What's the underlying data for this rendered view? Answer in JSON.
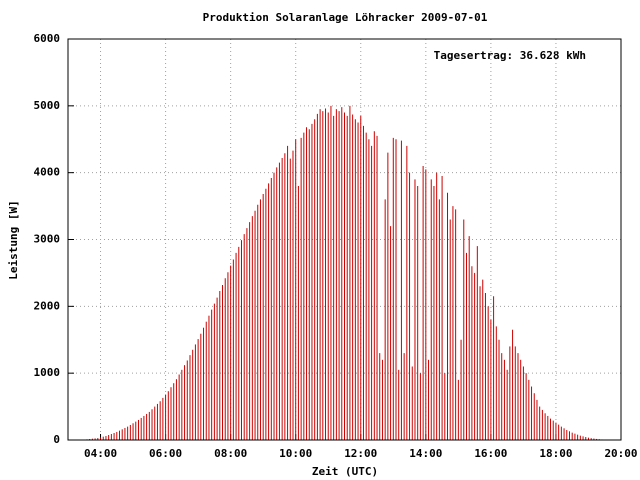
{
  "chart_data": {
    "type": "impulse",
    "title": "Produktion Solaranlage Löhracker 2009-07-01",
    "annotation": "Tagesertrag: 36.628 kWh",
    "x_label": "Zeit (UTC)",
    "y_label": "Leistung [W]",
    "color": "#cc0000",
    "grid": true,
    "xlim": [
      "03:00",
      "20:00"
    ],
    "xticks": [
      "04:00",
      "06:00",
      "08:00",
      "10:00",
      "12:00",
      "14:00",
      "16:00",
      "18:00",
      "20:00"
    ],
    "ylim": [
      0,
      6000
    ],
    "yticks": [
      0,
      1000,
      2000,
      3000,
      4000,
      5000,
      6000
    ],
    "x": [
      "03:35",
      "03:40",
      "03:45",
      "03:50",
      "03:55",
      "04:00",
      "04:05",
      "04:10",
      "04:15",
      "04:20",
      "04:25",
      "04:30",
      "04:35",
      "04:40",
      "04:45",
      "04:50",
      "04:55",
      "05:00",
      "05:05",
      "05:10",
      "05:15",
      "05:20",
      "05:25",
      "05:30",
      "05:35",
      "05:40",
      "05:45",
      "05:50",
      "05:55",
      "06:00",
      "06:05",
      "06:10",
      "06:15",
      "06:20",
      "06:25",
      "06:30",
      "06:35",
      "06:40",
      "06:45",
      "06:50",
      "06:55",
      "07:00",
      "07:05",
      "07:10",
      "07:15",
      "07:20",
      "07:25",
      "07:30",
      "07:35",
      "07:40",
      "07:45",
      "07:50",
      "07:55",
      "08:00",
      "08:05",
      "08:10",
      "08:15",
      "08:20",
      "08:25",
      "08:30",
      "08:35",
      "08:40",
      "08:45",
      "08:50",
      "08:55",
      "09:00",
      "09:05",
      "09:10",
      "09:15",
      "09:20",
      "09:25",
      "09:30",
      "09:35",
      "09:40",
      "09:45",
      "09:50",
      "09:55",
      "10:00",
      "10:05",
      "10:10",
      "10:15",
      "10:20",
      "10:25",
      "10:30",
      "10:35",
      "10:40",
      "10:45",
      "10:50",
      "10:55",
      "11:00",
      "11:05",
      "11:10",
      "11:15",
      "11:20",
      "11:25",
      "11:30",
      "11:35",
      "11:40",
      "11:45",
      "11:50",
      "11:55",
      "12:00",
      "12:05",
      "12:10",
      "12:15",
      "12:20",
      "12:25",
      "12:30",
      "12:35",
      "12:40",
      "12:45",
      "12:50",
      "12:55",
      "13:00",
      "13:05",
      "13:10",
      "13:15",
      "13:20",
      "13:25",
      "13:30",
      "13:35",
      "13:40",
      "13:45",
      "13:50",
      "13:55",
      "14:00",
      "14:05",
      "14:10",
      "14:15",
      "14:20",
      "14:25",
      "14:30",
      "14:35",
      "14:40",
      "14:45",
      "14:50",
      "14:55",
      "15:00",
      "15:05",
      "15:10",
      "15:15",
      "15:20",
      "15:25",
      "15:30",
      "15:35",
      "15:40",
      "15:45",
      "15:50",
      "15:55",
      "16:00",
      "16:05",
      "16:10",
      "16:15",
      "16:20",
      "16:25",
      "16:30",
      "16:35",
      "16:40",
      "16:45",
      "16:50",
      "16:55",
      "17:00",
      "17:05",
      "17:10",
      "17:15",
      "17:20",
      "17:25",
      "17:30",
      "17:35",
      "17:40",
      "17:45",
      "17:50",
      "17:55",
      "18:00",
      "18:05",
      "18:10",
      "18:15",
      "18:20",
      "18:25",
      "18:30",
      "18:35",
      "18:40",
      "18:45",
      "18:50",
      "18:55",
      "19:00",
      "19:05",
      "19:10",
      "19:15",
      "19:20",
      "19:25",
      "19:30",
      "19:35",
      "19:40"
    ],
    "values": [
      10,
      15,
      20,
      25,
      30,
      40,
      50,
      60,
      75,
      90,
      105,
      120,
      140,
      160,
      180,
      200,
      225,
      250,
      275,
      300,
      330,
      360,
      390,
      420,
      460,
      500,
      540,
      580,
      630,
      680,
      730,
      790,
      850,
      910,
      980,
      1050,
      1120,
      1190,
      1270,
      1350,
      1430,
      1510,
      1590,
      1680,
      1770,
      1860,
      1950,
      2040,
      2130,
      2230,
      2320,
      2420,
      2510,
      2610,
      2700,
      2800,
      2890,
      2990,
      3080,
      3170,
      3260,
      3350,
      3430,
      3520,
      3600,
      3680,
      3760,
      3840,
      3920,
      4000,
      4080,
      4150,
      4220,
      4290,
      4400,
      4210,
      4330,
      4500,
      3800,
      4520,
      4600,
      4680,
      4650,
      4730,
      4800,
      4880,
      4950,
      4920,
      4960,
      4900,
      5000,
      4850,
      4950,
      4920,
      4980,
      4900,
      4850,
      5000,
      4870,
      4800,
      4750,
      4850,
      4700,
      4600,
      4500,
      4400,
      4620,
      4550,
      1300,
      1200,
      3600,
      4300,
      3200,
      4520,
      4500,
      1050,
      4480,
      1300,
      4400,
      4000,
      1100,
      3900,
      3800,
      1000,
      4100,
      4050,
      1200,
      3900,
      3800,
      4000,
      3600,
      3950,
      1000,
      3700,
      3300,
      3500,
      3450,
      900,
      1500,
      3300,
      2800,
      3050,
      2600,
      2500,
      2900,
      2300,
      2400,
      2200,
      2000,
      1800,
      2150,
      1700,
      1500,
      1300,
      1200,
      1050,
      1400,
      1650,
      1400,
      1300,
      1200,
      1100,
      1000,
      900,
      800,
      700,
      600,
      500,
      450,
      400,
      360,
      320,
      290,
      260,
      230,
      200,
      175,
      150,
      130,
      110,
      95,
      80,
      65,
      55,
      45,
      35,
      28,
      22,
      16,
      12,
      8,
      5,
      3,
      2
    ]
  }
}
